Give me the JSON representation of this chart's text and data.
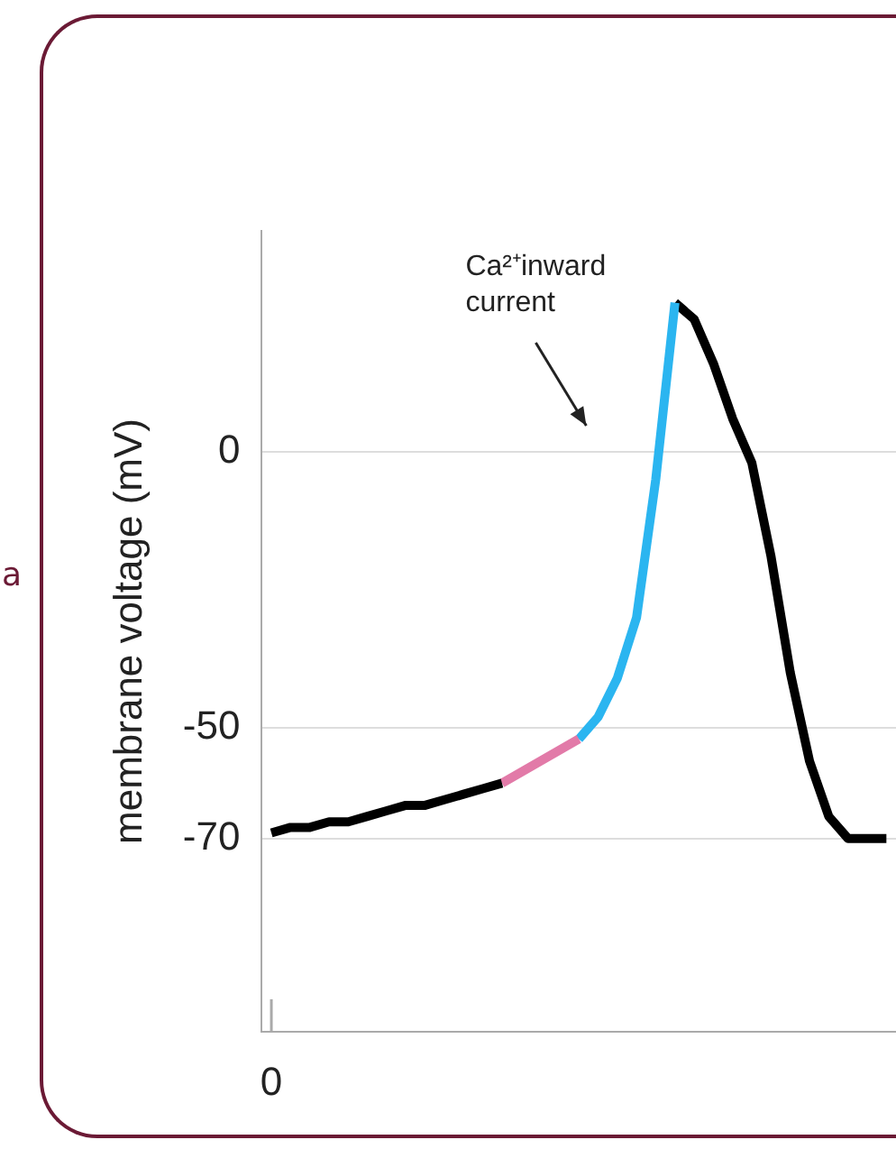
{
  "chart_data": {
    "type": "line",
    "ylabel": "membrane voltage (mV)",
    "categories": [
      null,
      null,
      null,
      null,
      null,
      null,
      null,
      null,
      null,
      null,
      null,
      null,
      null,
      null,
      null,
      null,
      null,
      null,
      null,
      null,
      null,
      null,
      null,
      null,
      null,
      null,
      null,
      null,
      null,
      null,
      null,
      null,
      null
    ],
    "ylim": [
      -105,
      40
    ],
    "yticks": [
      -70,
      -50,
      0
    ],
    "grid": "y",
    "legend": false,
    "marker": "none",
    "line_style": "solid",
    "tick_labels": "y",
    "series": [
      {
        "color": "#000000",
        "values": [
          -69,
          -68,
          -68,
          -67,
          -67,
          -66,
          -65,
          -64,
          -64,
          -63,
          -62,
          -61,
          -60,
          null,
          null,
          null,
          null,
          null,
          null,
          null,
          null,
          null,
          null,
          null,
          null,
          null,
          null,
          null,
          null,
          null,
          null,
          null,
          null
        ]
      },
      {
        "color": "#e27aa8",
        "values": [
          null,
          null,
          null,
          null,
          null,
          null,
          null,
          null,
          null,
          null,
          null,
          null,
          -60,
          -58,
          -56,
          -54,
          -52,
          null,
          null,
          null,
          null,
          null,
          null,
          null,
          null,
          null,
          null,
          null,
          null,
          null,
          null,
          null,
          null
        ]
      },
      {
        "color": "#2bb5f0",
        "values": [
          null,
          null,
          null,
          null,
          null,
          null,
          null,
          null,
          null,
          null,
          null,
          null,
          null,
          null,
          null,
          null,
          -52,
          -48,
          -41,
          -30,
          -5,
          27,
          null,
          null,
          null,
          null,
          null,
          null,
          null,
          null,
          null,
          null,
          null
        ]
      },
      {
        "color": "#000000",
        "values": [
          null,
          null,
          null,
          null,
          null,
          null,
          null,
          null,
          null,
          null,
          null,
          null,
          null,
          null,
          null,
          null,
          null,
          null,
          null,
          null,
          null,
          27,
          24,
          16,
          6,
          -2,
          -19,
          -40,
          -56,
          -66,
          -70,
          -70,
          -70
        ]
      }
    ],
    "annotations": [
      "Ca²⁺inward\ncurrent",
      "0",
      "a"
    ]
  }
}
